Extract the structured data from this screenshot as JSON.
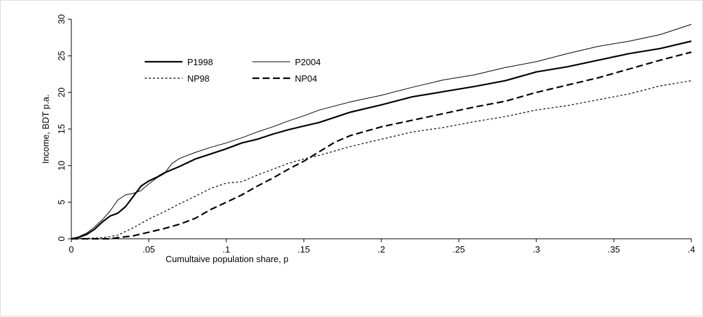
{
  "chart_data": {
    "type": "line",
    "title": "",
    "xlabel": "Cumultaive population share, p",
    "ylabel": "Income, BDT p.a.",
    "xlim": [
      0,
      0.4
    ],
    "ylim": [
      0,
      30
    ],
    "x_ticks": [
      0,
      0.05,
      0.1,
      0.15,
      0.2,
      0.25,
      0.3,
      0.35,
      0.4
    ],
    "x_tick_labels": [
      "0",
      ".05",
      ".1",
      ".15",
      ".2",
      ".25",
      ".3",
      ".35",
      ".4"
    ],
    "y_ticks": [
      0,
      5,
      10,
      15,
      20,
      25,
      30
    ],
    "y_tick_labels": [
      "0",
      "5",
      "10",
      "15",
      "20",
      "25",
      "30"
    ],
    "grid": false,
    "legend_position": "top-left",
    "series": [
      {
        "name": "P1998",
        "style": "thick-solid",
        "color": "#000000",
        "x": [
          0,
          0.005,
          0.01,
          0.015,
          0.02,
          0.025,
          0.03,
          0.035,
          0.04,
          0.045,
          0.05,
          0.055,
          0.06,
          0.07,
          0.08,
          0.09,
          0.1,
          0.11,
          0.12,
          0.13,
          0.14,
          0.15,
          0.16,
          0.18,
          0.2,
          0.22,
          0.24,
          0.26,
          0.28,
          0.3,
          0.32,
          0.34,
          0.36,
          0.38,
          0.4
        ],
        "y": [
          0,
          0.2,
          0.6,
          1.3,
          2.3,
          3.1,
          3.5,
          4.4,
          5.8,
          7.2,
          7.9,
          8.4,
          9.0,
          9.9,
          10.9,
          11.6,
          12.3,
          13.1,
          13.6,
          14.3,
          14.9,
          15.4,
          15.9,
          17.3,
          18.3,
          19.4,
          20.1,
          20.8,
          21.6,
          22.8,
          23.5,
          24.4,
          25.3,
          26.0,
          27.0
        ]
      },
      {
        "name": "P2004",
        "style": "thin-solid",
        "color": "#000000",
        "x": [
          0,
          0.005,
          0.01,
          0.015,
          0.02,
          0.025,
          0.03,
          0.035,
          0.04,
          0.045,
          0.05,
          0.055,
          0.06,
          0.065,
          0.07,
          0.08,
          0.09,
          0.1,
          0.11,
          0.12,
          0.13,
          0.14,
          0.15,
          0.16,
          0.18,
          0.2,
          0.22,
          0.24,
          0.26,
          0.28,
          0.3,
          0.32,
          0.34,
          0.36,
          0.38,
          0.4
        ],
        "y": [
          0,
          0.3,
          0.8,
          1.6,
          2.6,
          3.8,
          5.3,
          6.0,
          6.2,
          6.6,
          7.5,
          8.3,
          8.9,
          10.3,
          11.0,
          11.8,
          12.5,
          13.1,
          13.8,
          14.6,
          15.3,
          16.1,
          16.8,
          17.6,
          18.7,
          19.6,
          20.7,
          21.7,
          22.4,
          23.4,
          24.2,
          25.3,
          26.3,
          27.0,
          27.9,
          29.3
        ]
      },
      {
        "name": "NP98",
        "style": "dotted",
        "color": "#000000",
        "x": [
          0,
          0.01,
          0.02,
          0.025,
          0.03,
          0.035,
          0.04,
          0.05,
          0.06,
          0.07,
          0.08,
          0.09,
          0.1,
          0.11,
          0.12,
          0.13,
          0.14,
          0.15,
          0.16,
          0.18,
          0.2,
          0.22,
          0.24,
          0.26,
          0.28,
          0.3,
          0.32,
          0.34,
          0.36,
          0.38,
          0.4
        ],
        "y": [
          0,
          0.05,
          0.15,
          0.3,
          0.5,
          1.0,
          1.5,
          2.7,
          3.7,
          4.8,
          5.8,
          6.9,
          7.6,
          7.8,
          8.7,
          9.5,
          10.3,
          10.9,
          11.4,
          12.6,
          13.6,
          14.6,
          15.2,
          16.0,
          16.7,
          17.6,
          18.2,
          19.0,
          19.8,
          20.9,
          21.6
        ]
      },
      {
        "name": "NP04",
        "style": "dashed",
        "color": "#000000",
        "x": [
          0,
          0.025,
          0.03,
          0.04,
          0.05,
          0.06,
          0.07,
          0.08,
          0.09,
          0.1,
          0.11,
          0.12,
          0.13,
          0.14,
          0.15,
          0.16,
          0.17,
          0.18,
          0.2,
          0.22,
          0.24,
          0.26,
          0.28,
          0.3,
          0.32,
          0.34,
          0.36,
          0.38,
          0.4
        ],
        "y": [
          0,
          0.0,
          0.15,
          0.4,
          0.9,
          1.4,
          2.0,
          2.8,
          4.0,
          5.0,
          6.0,
          7.2,
          8.3,
          9.5,
          10.6,
          11.9,
          13.2,
          14.1,
          15.3,
          16.2,
          17.1,
          18.0,
          18.8,
          20.0,
          21.0,
          22.0,
          23.2,
          24.4,
          25.5
        ]
      }
    ]
  }
}
